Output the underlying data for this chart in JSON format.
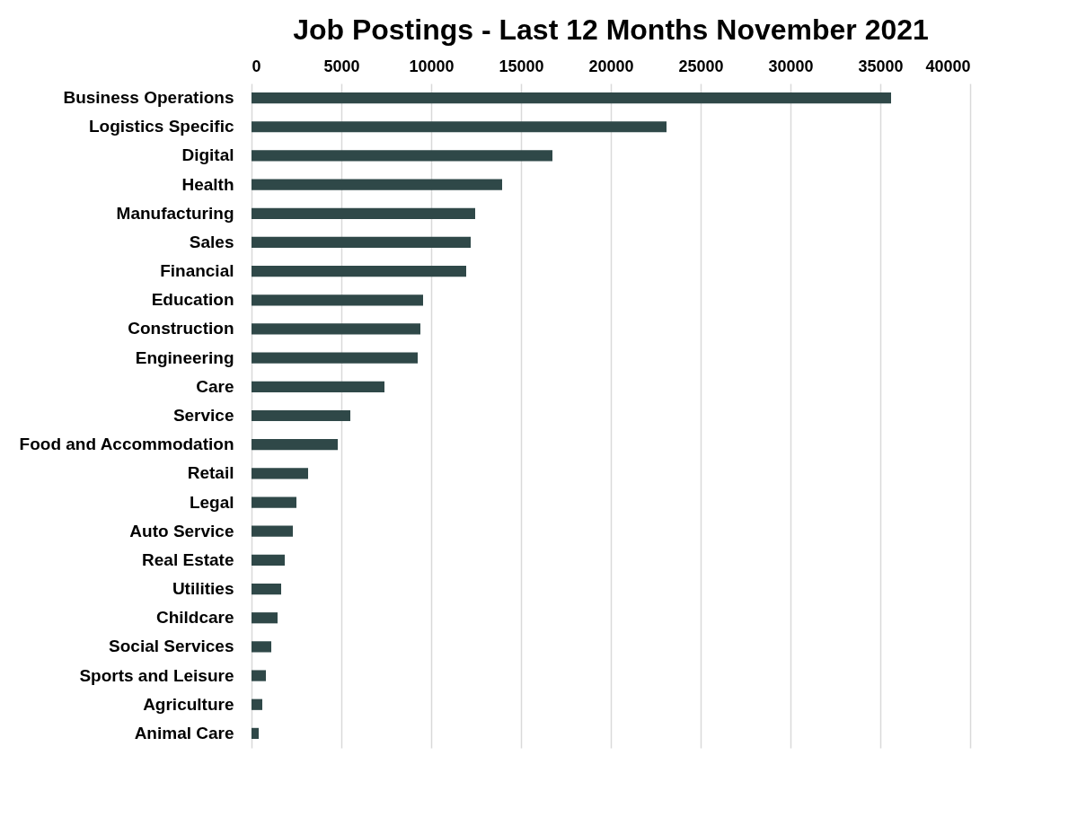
{
  "chart_data": {
    "type": "bar",
    "orientation": "horizontal",
    "title": "Job Postings - Last 12 Months November 2021",
    "categories": [
      "Business Operations",
      "Logistics Specific",
      "Digital",
      "Health",
      "Manufacturing",
      "Sales",
      "Financial",
      "Education",
      "Construction",
      "Engineering",
      "Care",
      "Service",
      "Food and Accommodation",
      "Retail",
      "Legal",
      "Auto Service",
      "Real Estate",
      "Utilities",
      "Childcare",
      "Social Services",
      "Sports and Leisure",
      "Agriculture",
      "Animal Care"
    ],
    "values": [
      35600,
      23100,
      16750,
      13950,
      12450,
      12200,
      11950,
      9550,
      9400,
      9250,
      7400,
      5500,
      4800,
      3150,
      2500,
      2300,
      1850,
      1650,
      1450,
      1100,
      800,
      600,
      400
    ],
    "color": "#2f4848",
    "xlim": [
      0,
      40000
    ],
    "xticks": [
      0,
      5000,
      10000,
      15000,
      20000,
      25000,
      30000,
      35000,
      40000
    ],
    "grid": "x"
  }
}
